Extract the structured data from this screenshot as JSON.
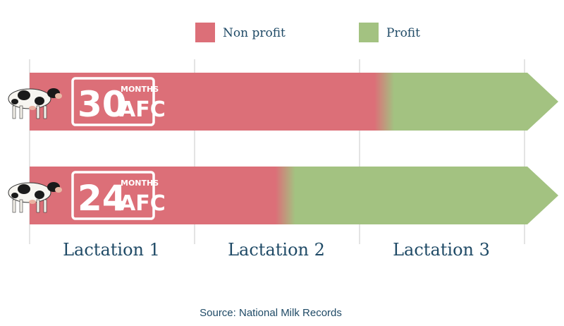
{
  "colors": {
    "non_profit": "#dc6f78",
    "profit": "#a3c281",
    "text": "#1f4a66",
    "grid": "#c8c8c8"
  },
  "chart_data": {
    "type": "bar",
    "orientation": "horizontal",
    "stacked": true,
    "title": "",
    "xlabel": "",
    "ylabel": "",
    "x_unit": "lactations",
    "xlim": [
      0,
      3
    ],
    "legend": {
      "position": "top-center",
      "entries": [
        "Non profit",
        "Profit"
      ]
    },
    "x_tick_labels": [
      "Lactation 1",
      "Lactation 2",
      "Lactation 3"
    ],
    "categories": [
      {
        "stamp_number": "30",
        "stamp_top": "MONTHS",
        "stamp_bottom": "AFC",
        "icon": "cow-icon"
      },
      {
        "stamp_number": "24",
        "stamp_top": "MONTHS",
        "stamp_bottom": "AFC",
        "icon": "cow-icon"
      }
    ],
    "series": [
      {
        "name": "Non profit",
        "values": [
          2.15,
          1.55
        ]
      },
      {
        "name": "Profit",
        "values": [
          0.85,
          1.45
        ]
      }
    ],
    "source": "Source: National Milk Records"
  }
}
